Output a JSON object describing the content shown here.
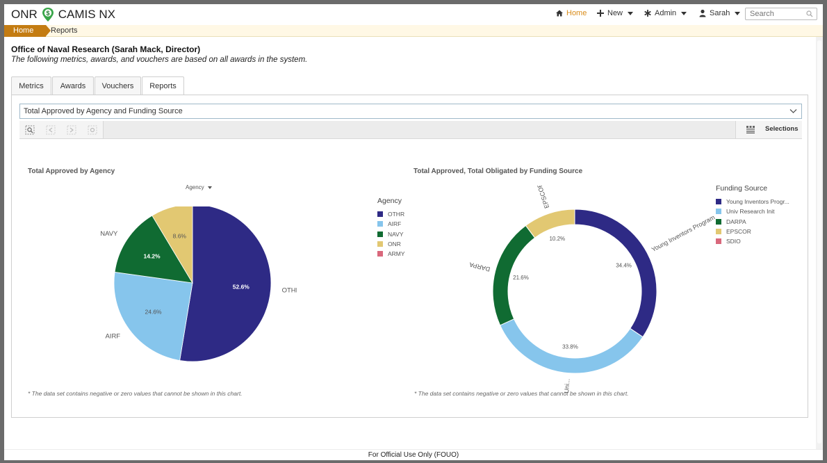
{
  "app": {
    "brand_left": "ONR",
    "brand_right": "CAMIS NX",
    "logo_glyph": "$",
    "accent_color": "#d98c1a"
  },
  "topnav": {
    "home": "Home",
    "new": "New",
    "admin": "Admin",
    "user": "Sarah",
    "search_placeholder": "Search"
  },
  "breadcrumb": {
    "home": "Home",
    "current": "Reports"
  },
  "page": {
    "heading": "Office of Naval Research (Sarah Mack, Director)",
    "subheading": "The following metrics, awards, and vouchers are based on all awards in the system."
  },
  "tabs": [
    {
      "label": "Metrics"
    },
    {
      "label": "Awards"
    },
    {
      "label": "Vouchers"
    },
    {
      "label": "Reports",
      "active": true
    }
  ],
  "report_select": {
    "value": "Total Approved by Agency and Funding Source"
  },
  "toolbar": {
    "selections_label": "Selections"
  },
  "footer": {
    "text": "For Official Use Only (FOUO)"
  },
  "chart_data": [
    {
      "type": "pie",
      "title": "Total Approved by Agency",
      "dimension_selector": "Agency",
      "legend_title": "Agency",
      "legend_position": "right",
      "categories": [
        "OTHR",
        "AIRF",
        "NAVY",
        "ONR",
        "ARMY"
      ],
      "values": [
        52.6,
        24.6,
        14.2,
        8.6,
        0
      ],
      "value_labels": [
        "52.6%",
        "24.6%",
        "14.2%",
        "8.6%",
        ""
      ],
      "colors": [
        "#2e2a85",
        "#86c5ec",
        "#106b32",
        "#e2c872",
        "#d9687c"
      ],
      "note": "* The data set contains negative or zero values that cannot be shown in this chart."
    },
    {
      "type": "pie",
      "subtype": "donut",
      "title": "Total Approved, Total Obligated by Funding Source",
      "legend_title": "Funding Source",
      "legend_position": "right",
      "categories": [
        "Young Inventors Program",
        "Univ Research Init",
        "DARPA",
        "EPSCOR",
        "SDIO"
      ],
      "legend_labels": [
        "Young Inventors Progr...",
        "Univ Research Init",
        "DARPA",
        "EPSCOR",
        "SDIO"
      ],
      "slice_labels": [
        "Young Inventors Program",
        "Uni...",
        "DARPA",
        "EPSCOR",
        ""
      ],
      "values": [
        34.4,
        33.8,
        21.6,
        10.2,
        0
      ],
      "value_labels": [
        "34.4%",
        "33.8%",
        "21.6%",
        "10.2%",
        ""
      ],
      "colors": [
        "#2e2a85",
        "#86c5ec",
        "#106b32",
        "#e2c872",
        "#d9687c"
      ],
      "note": "* The data set contains negative or zero values that cannot be shown in this chart."
    }
  ]
}
